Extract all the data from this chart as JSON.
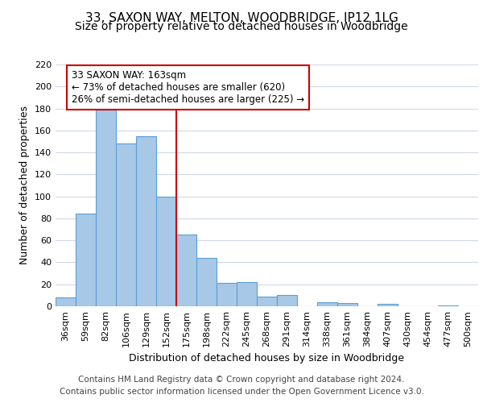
{
  "title": "33, SAXON WAY, MELTON, WOODBRIDGE, IP12 1LG",
  "subtitle": "Size of property relative to detached houses in Woodbridge",
  "xlabel": "Distribution of detached houses by size in Woodbridge",
  "ylabel": "Number of detached properties",
  "bin_labels": [
    "36sqm",
    "59sqm",
    "82sqm",
    "106sqm",
    "129sqm",
    "152sqm",
    "175sqm",
    "198sqm",
    "222sqm",
    "245sqm",
    "268sqm",
    "291sqm",
    "314sqm",
    "338sqm",
    "361sqm",
    "384sqm",
    "407sqm",
    "430sqm",
    "454sqm",
    "477sqm",
    "500sqm"
  ],
  "bar_heights": [
    8,
    84,
    179,
    148,
    155,
    100,
    65,
    44,
    21,
    22,
    9,
    10,
    0,
    4,
    3,
    0,
    2,
    0,
    0,
    1,
    0
  ],
  "bar_color": "#a8c8e8",
  "bar_edge_color": "#5a9fd4",
  "highlight_line_color": "#cc0000",
  "annotation_text": "33 SAXON WAY: 163sqm\n← 73% of detached houses are smaller (620)\n26% of semi-detached houses are larger (225) →",
  "annotation_box_color": "#ffffff",
  "annotation_box_edge_color": "#cc0000",
  "ylim": [
    0,
    220
  ],
  "yticks": [
    0,
    20,
    40,
    60,
    80,
    100,
    120,
    140,
    160,
    180,
    200,
    220
  ],
  "footer_line1": "Contains HM Land Registry data © Crown copyright and database right 2024.",
  "footer_line2": "Contains public sector information licensed under the Open Government Licence v3.0.",
  "bg_color": "#ffffff",
  "grid_color": "#d0d8e8",
  "title_fontsize": 11,
  "subtitle_fontsize": 10,
  "axis_label_fontsize": 9,
  "tick_fontsize": 8,
  "annotation_fontsize": 8.5,
  "footer_fontsize": 7.5
}
